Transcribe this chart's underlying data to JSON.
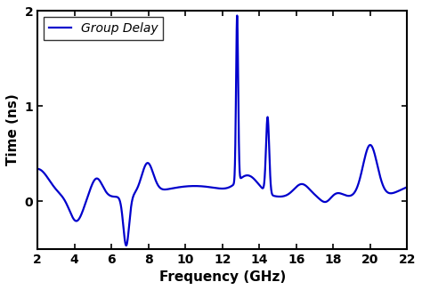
{
  "title": "",
  "xlabel": "Frequency (GHz)",
  "ylabel": "Time (ns)",
  "legend_label": "Group Delay",
  "line_color": "#0000CC",
  "line_width": 1.6,
  "xlim": [
    2,
    22
  ],
  "ylim": [
    -0.5,
    2.0
  ],
  "xticks": [
    2,
    4,
    6,
    8,
    10,
    12,
    14,
    16,
    18,
    20,
    22
  ],
  "yticks": [
    0,
    1,
    2
  ],
  "background_color": "#ffffff",
  "freq_start": 2,
  "freq_end": 22,
  "num_points": 3000
}
